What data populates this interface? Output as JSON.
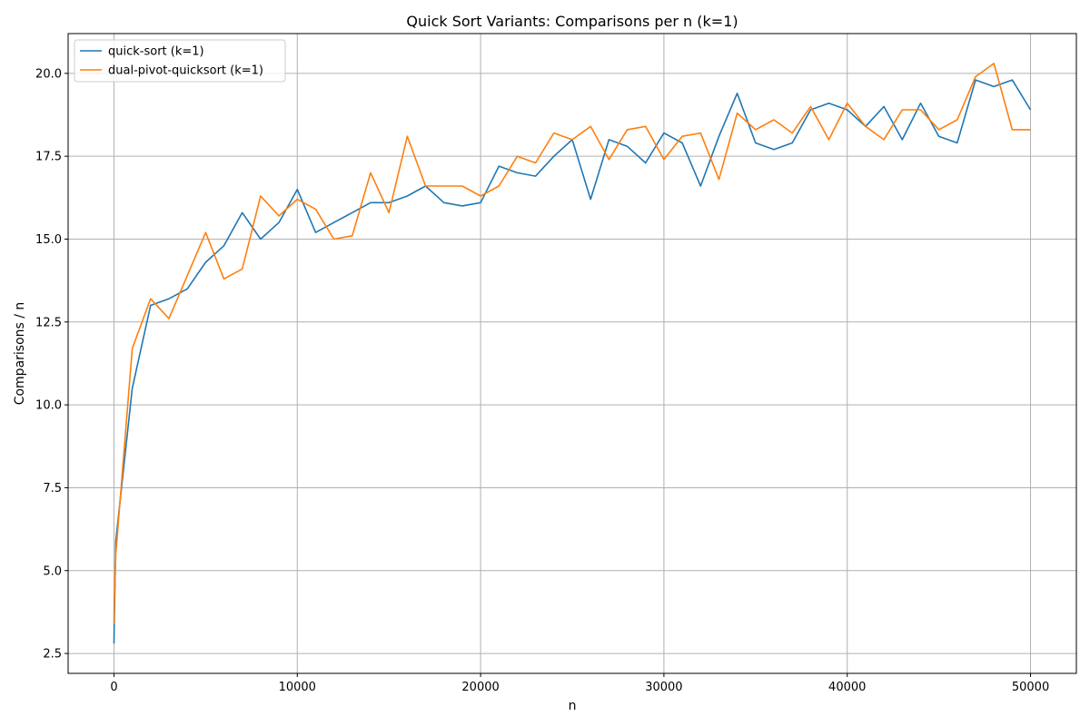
{
  "chart_data": {
    "type": "line",
    "title": "Quick Sort Variants: Comparisons per n (k=1)",
    "xlabel": "n",
    "ylabel": "Comparisons / n",
    "xlim": [
      -2500,
      52500
    ],
    "ylim": [
      1.9,
      21.2
    ],
    "xticks": [
      0,
      10000,
      20000,
      30000,
      40000,
      50000
    ],
    "yticks": [
      2.5,
      5.0,
      7.5,
      10.0,
      12.5,
      15.0,
      17.5,
      20.0
    ],
    "ytick_labels": [
      "2.5",
      "5.0",
      "7.5",
      "10.0",
      "12.5",
      "15.0",
      "17.5",
      "20.0"
    ],
    "grid": true,
    "legend_position": "top-left",
    "x": [
      1,
      10,
      100,
      1000,
      2000,
      3000,
      4000,
      5000,
      6000,
      7000,
      8000,
      9000,
      10000,
      11000,
      12000,
      13000,
      14000,
      15000,
      16000,
      17000,
      18000,
      19000,
      20000,
      21000,
      22000,
      23000,
      24000,
      25000,
      26000,
      27000,
      28000,
      29000,
      30000,
      31000,
      32000,
      33000,
      34000,
      35000,
      36000,
      37000,
      38000,
      39000,
      40000,
      41000,
      42000,
      43000,
      44000,
      45000,
      46000,
      47000,
      48000,
      49000,
      50000
    ],
    "series": [
      {
        "name": "quick-sort (k=1)",
        "color": "#1f77b4",
        "values": [
          2.8,
          3.3,
          5.9,
          10.5,
          13.0,
          13.2,
          13.5,
          14.3,
          14.8,
          15.8,
          15.0,
          15.5,
          16.5,
          15.2,
          15.5,
          15.8,
          16.1,
          16.1,
          16.3,
          16.6,
          16.1,
          16.0,
          16.1,
          17.2,
          17.0,
          16.9,
          17.5,
          18.0,
          16.2,
          18.0,
          17.8,
          17.3,
          18.2,
          17.9,
          16.6,
          18.1,
          19.4,
          17.9,
          17.7,
          17.9,
          18.9,
          19.1,
          18.9,
          18.4,
          19.0,
          18.0,
          19.1,
          18.1,
          17.9,
          19.8,
          19.6,
          19.8,
          18.9
        ]
      },
      {
        "name": "dual-pivot-quicksort (k=1)",
        "color": "#ff7f0e",
        "values": [
          3.4,
          4.0,
          5.5,
          11.7,
          13.2,
          12.6,
          13.9,
          15.2,
          13.8,
          14.1,
          16.3,
          15.7,
          16.2,
          15.9,
          15.0,
          15.1,
          17.0,
          15.8,
          18.1,
          16.6,
          16.6,
          16.6,
          16.3,
          16.6,
          17.5,
          17.3,
          18.2,
          18.0,
          18.4,
          17.4,
          18.3,
          18.4,
          17.4,
          18.1,
          18.2,
          16.8,
          18.8,
          18.3,
          18.6,
          18.2,
          19.0,
          18.0,
          19.1,
          18.4,
          18.0,
          18.9,
          18.9,
          18.3,
          18.6,
          19.9,
          20.3,
          18.3,
          18.3
        ]
      }
    ]
  }
}
